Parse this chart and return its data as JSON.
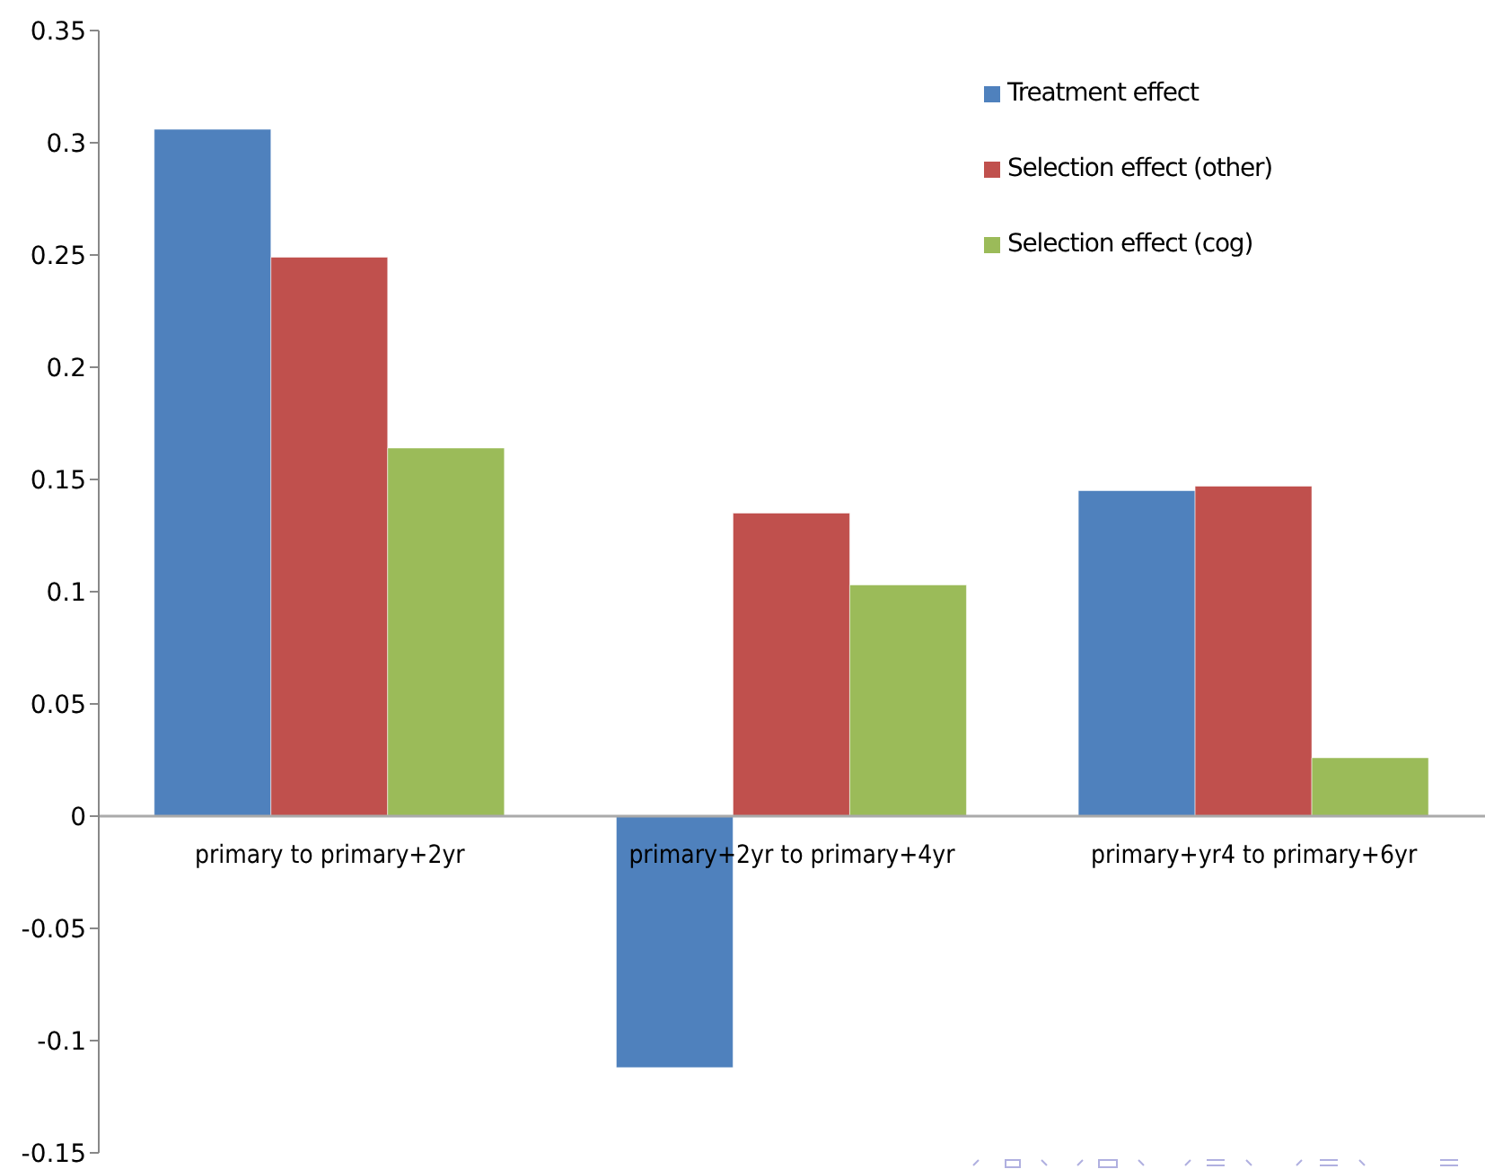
{
  "chart_data": {
    "type": "bar",
    "categories": [
      "primary to primary+2yr",
      "primary+2yr to primary+4yr",
      "primary+yr4 to primary+6yr"
    ],
    "series": [
      {
        "name": "Treatment effect",
        "color": "#4f81bd",
        "values": [
          0.306,
          -0.112,
          0.145
        ]
      },
      {
        "name": "Selection effect (other)",
        "color": "#c0504d",
        "values": [
          0.249,
          0.135,
          0.147
        ]
      },
      {
        "name": "Selection effect (cog)",
        "color": "#9bbb59",
        "values": [
          0.164,
          0.103,
          0.026
        ]
      }
    ],
    "ylim": [
      -0.15,
      0.35
    ],
    "yticks": [
      -0.15,
      -0.1,
      -0.05,
      0,
      0.05,
      0.1,
      0.15,
      0.2,
      0.25,
      0.3,
      0.35
    ],
    "grid": false,
    "legend": "top right"
  }
}
